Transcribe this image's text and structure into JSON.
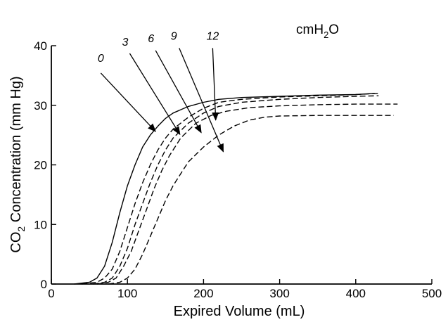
{
  "chart_data": {
    "type": "line",
    "title": "",
    "xlabel": "Expired Volume (mL)",
    "ylabel": {
      "pre": "CO",
      "sub": "2",
      "post": " Concentration (mm Hg)"
    },
    "unit_label": {
      "pre": "cmH",
      "sub": "2",
      "post": "O"
    },
    "xlim": [
      0,
      500
    ],
    "ylim": [
      0,
      40
    ],
    "xticks": [
      0,
      100,
      200,
      300,
      400,
      500
    ],
    "yticks": [
      0,
      10,
      20,
      30,
      40
    ],
    "grid": false,
    "legend": "none",
    "series": [
      {
        "name": "0",
        "dashed": false,
        "points": [
          [
            30,
            0
          ],
          [
            50,
            0.3
          ],
          [
            60,
            1
          ],
          [
            70,
            3
          ],
          [
            80,
            7
          ],
          [
            90,
            12
          ],
          [
            100,
            16.5
          ],
          [
            110,
            20
          ],
          [
            120,
            23
          ],
          [
            130,
            25
          ],
          [
            140,
            26.5
          ],
          [
            150,
            27.8
          ],
          [
            160,
            28.7
          ],
          [
            180,
            29.8
          ],
          [
            200,
            30.5
          ],
          [
            220,
            31
          ],
          [
            250,
            31.3
          ],
          [
            300,
            31.5
          ],
          [
            350,
            31.7
          ],
          [
            400,
            31.8
          ],
          [
            425,
            32
          ]
        ]
      },
      {
        "name": "3",
        "dashed": true,
        "points": [
          [
            40,
            0
          ],
          [
            60,
            0.3
          ],
          [
            70,
            1
          ],
          [
            80,
            2.5
          ],
          [
            90,
            5.5
          ],
          [
            100,
            9.5
          ],
          [
            110,
            13.5
          ],
          [
            120,
            17
          ],
          [
            130,
            20
          ],
          [
            140,
            22.5
          ],
          [
            150,
            24.5
          ],
          [
            160,
            26
          ],
          [
            180,
            28
          ],
          [
            200,
            29.5
          ],
          [
            220,
            30.5
          ],
          [
            250,
            31
          ],
          [
            300,
            31.4
          ],
          [
            350,
            31.6
          ],
          [
            400,
            31.8
          ],
          [
            430,
            32
          ]
        ]
      },
      {
        "name": "6",
        "dashed": true,
        "points": [
          [
            55,
            0
          ],
          [
            70,
            0.3
          ],
          [
            80,
            1
          ],
          [
            90,
            3
          ],
          [
            100,
            6
          ],
          [
            110,
            10
          ],
          [
            120,
            13.5
          ],
          [
            130,
            17
          ],
          [
            140,
            20
          ],
          [
            150,
            22.5
          ],
          [
            160,
            24.5
          ],
          [
            180,
            27
          ],
          [
            200,
            28.7
          ],
          [
            220,
            29.8
          ],
          [
            250,
            30.5
          ],
          [
            300,
            31
          ],
          [
            350,
            31.3
          ],
          [
            400,
            31.5
          ],
          [
            430,
            31.6
          ]
        ]
      },
      {
        "name": "9",
        "dashed": true,
        "points": [
          [
            60,
            0
          ],
          [
            75,
            0.3
          ],
          [
            85,
            1
          ],
          [
            95,
            3
          ],
          [
            105,
            5.5
          ],
          [
            115,
            9
          ],
          [
            125,
            12.5
          ],
          [
            135,
            16
          ],
          [
            145,
            19
          ],
          [
            155,
            21.5
          ],
          [
            170,
            24.5
          ],
          [
            190,
            27
          ],
          [
            210,
            28.3
          ],
          [
            230,
            29
          ],
          [
            260,
            29.6
          ],
          [
            300,
            29.9
          ],
          [
            350,
            30.1
          ],
          [
            400,
            30.2
          ],
          [
            455,
            30.2
          ]
        ]
      },
      {
        "name": "12",
        "dashed": true,
        "points": [
          [
            75,
            0
          ],
          [
            90,
            0.3
          ],
          [
            100,
            1
          ],
          [
            110,
            2.5
          ],
          [
            120,
            5
          ],
          [
            130,
            8
          ],
          [
            140,
            11
          ],
          [
            150,
            14
          ],
          [
            160,
            16.5
          ],
          [
            170,
            18.5
          ],
          [
            180,
            20.5
          ],
          [
            200,
            23
          ],
          [
            220,
            25
          ],
          [
            240,
            26.5
          ],
          [
            260,
            27.5
          ],
          [
            280,
            28
          ],
          [
            300,
            28.2
          ],
          [
            350,
            28.3
          ],
          [
            400,
            28.3
          ],
          [
            450,
            28.3
          ]
        ]
      }
    ],
    "annotations": [
      {
        "text": "0",
        "label_at": [
          65,
          37.3
        ],
        "arrow_from": [
          65,
          35.4
        ],
        "arrow_to": [
          137,
          25.6
        ]
      },
      {
        "text": "3",
        "label_at": [
          97,
          40
        ],
        "arrow_from": [
          103,
          38.7
        ],
        "arrow_to": [
          169,
          25.1
        ]
      },
      {
        "text": "6",
        "label_at": [
          131,
          40.6
        ],
        "arrow_from": [
          137,
          39.2
        ],
        "arrow_to": [
          197,
          25.4
        ]
      },
      {
        "text": "9",
        "label_at": [
          161,
          41
        ],
        "arrow_from": [
          168,
          39.6
        ],
        "arrow_to": [
          226,
          22.2
        ]
      },
      {
        "text": "12",
        "label_at": [
          212,
          41
        ],
        "arrow_from": [
          212,
          39.6
        ],
        "arrow_to": [
          216,
          27.5
        ]
      }
    ]
  }
}
